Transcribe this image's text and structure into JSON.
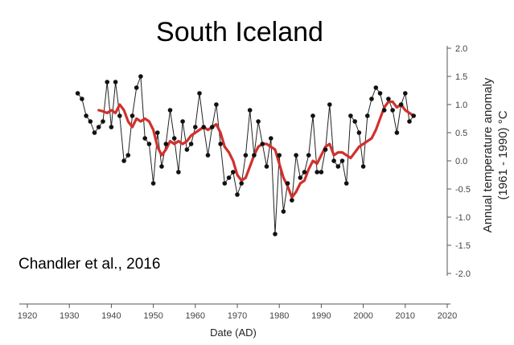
{
  "chart_data": {
    "type": "line",
    "title": "South Iceland",
    "annotation": "Chandler et al., 2016",
    "xlabel": "Date (AD)",
    "ylabel_line1": "Annual temperature anomaly",
    "ylabel_line2": "(1961 - 1990) °C",
    "xlim": [
      1920,
      2020
    ],
    "ylim": [
      -2.0,
      2.0
    ],
    "x_ticks": [
      1920,
      1930,
      1940,
      1950,
      1960,
      1970,
      1980,
      1990,
      2000,
      2010,
      2020
    ],
    "y_ticks": [
      2.0,
      1.5,
      1.0,
      0.5,
      0.0,
      -0.5,
      -1.0,
      -1.5,
      -2.0
    ],
    "x_tick_labels": [
      "1920",
      "1930",
      "1940",
      "1950",
      "1960",
      "1970",
      "1980",
      "1990",
      "2000",
      "2010",
      "2020"
    ],
    "y_tick_labels": [
      "2.0",
      "1.5",
      "1.0",
      "0.5",
      "0.0",
      "-0.5",
      "-1.0",
      "-1.5",
      "-2.0"
    ],
    "grid": false,
    "series": [
      {
        "style": "annual",
        "color": "#222222",
        "x": [
          1932,
          1933,
          1934,
          1935,
          1936,
          1937,
          1938,
          1939,
          1940,
          1941,
          1942,
          1943,
          1944,
          1945,
          1946,
          1947,
          1948,
          1949,
          1950,
          1951,
          1952,
          1953,
          1954,
          1955,
          1956,
          1957,
          1958,
          1959,
          1960,
          1961,
          1962,
          1963,
          1964,
          1965,
          1966,
          1967,
          1968,
          1969,
          1970,
          1971,
          1972,
          1973,
          1974,
          1975,
          1976,
          1977,
          1978,
          1979,
          1980,
          1981,
          1982,
          1983,
          1984,
          1985,
          1986,
          1987,
          1988,
          1989,
          1990,
          1991,
          1992,
          1993,
          1994,
          1995,
          1996,
          1997,
          1998,
          1999,
          2000,
          2001,
          2002,
          2003,
          2004,
          2005,
          2006,
          2007,
          2008,
          2009,
          2010,
          2011,
          2012
        ],
        "y": [
          1.2,
          1.1,
          0.8,
          0.7,
          0.5,
          0.6,
          0.7,
          1.4,
          0.6,
          1.4,
          0.8,
          0.0,
          0.1,
          0.8,
          1.3,
          1.5,
          0.4,
          0.3,
          -0.4,
          0.5,
          -0.1,
          0.3,
          0.9,
          0.4,
          -0.2,
          0.7,
          0.2,
          0.3,
          0.6,
          1.2,
          0.6,
          0.1,
          0.6,
          1.0,
          0.3,
          -0.4,
          -0.3,
          -0.2,
          -0.6,
          -0.4,
          0.1,
          0.9,
          0.1,
          0.7,
          0.3,
          -0.1,
          0.4,
          -1.3,
          0.1,
          -0.9,
          -0.4,
          -0.7,
          0.1,
          -0.3,
          -0.2,
          0.1,
          0.8,
          -0.2,
          -0.2,
          0.2,
          1.0,
          0.0,
          -0.1,
          0.0,
          -0.4,
          0.8,
          0.7,
          0.5,
          -0.1,
          0.8,
          1.1,
          1.3,
          1.2,
          0.9,
          1.1,
          0.9,
          0.5,
          1.0,
          1.2,
          0.7,
          0.8
        ]
      },
      {
        "style": "running-mean",
        "color": "#d0312d",
        "x": [
          1937,
          1938,
          1939,
          1940,
          1941,
          1942,
          1943,
          1944,
          1945,
          1946,
          1947,
          1948,
          1949,
          1950,
          1951,
          1952,
          1953,
          1954,
          1955,
          1956,
          1957,
          1958,
          1959,
          1960,
          1961,
          1962,
          1963,
          1964,
          1965,
          1966,
          1967,
          1968,
          1969,
          1970,
          1971,
          1972,
          1973,
          1974,
          1975,
          1976,
          1977,
          1978,
          1979,
          1980,
          1981,
          1982,
          1983,
          1984,
          1985,
          1986,
          1987,
          1988,
          1989,
          1990,
          1991,
          1992,
          1993,
          1994,
          1995,
          1996,
          1997,
          1998,
          1999,
          2000,
          2001,
          2002,
          2003,
          2004,
          2005,
          2006,
          2007,
          2008,
          2009,
          2010,
          2011,
          2012
        ],
        "y": [
          0.9,
          0.88,
          0.85,
          0.9,
          0.85,
          1.0,
          0.9,
          0.7,
          0.6,
          0.75,
          0.7,
          0.75,
          0.7,
          0.55,
          0.25,
          0.1,
          0.2,
          0.35,
          0.3,
          0.35,
          0.3,
          0.35,
          0.45,
          0.5,
          0.55,
          0.6,
          0.55,
          0.6,
          0.65,
          0.5,
          0.25,
          0.15,
          0.0,
          -0.25,
          -0.35,
          -0.3,
          -0.1,
          0.1,
          0.25,
          0.3,
          0.3,
          0.25,
          0.2,
          -0.05,
          -0.3,
          -0.45,
          -0.65,
          -0.55,
          -0.4,
          -0.35,
          -0.15,
          0.0,
          -0.05,
          0.1,
          0.25,
          0.3,
          0.1,
          0.15,
          0.15,
          0.1,
          0.05,
          0.15,
          0.25,
          0.3,
          0.35,
          0.4,
          0.55,
          0.75,
          0.95,
          1.05,
          1.05,
          0.95,
          1.0,
          0.9,
          0.85,
          0.8
        ]
      }
    ]
  }
}
